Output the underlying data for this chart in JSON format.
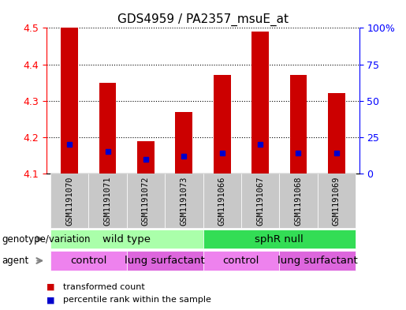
{
  "title": "GDS4959 / PA2357_msuE_at",
  "samples": [
    "GSM1191070",
    "GSM1191071",
    "GSM1191072",
    "GSM1191073",
    "GSM1191066",
    "GSM1191067",
    "GSM1191068",
    "GSM1191069"
  ],
  "transformed_counts": [
    4.5,
    4.35,
    4.19,
    4.27,
    4.37,
    4.49,
    4.37,
    4.32
  ],
  "percentile_ranks": [
    20,
    15,
    10,
    12,
    14,
    20,
    14,
    14
  ],
  "bar_bottom": 4.1,
  "ylim": [
    4.1,
    4.5
  ],
  "yticks": [
    4.1,
    4.2,
    4.3,
    4.4,
    4.5
  ],
  "right_yticks": [
    0,
    25,
    50,
    75,
    100
  ],
  "right_ylim": [
    0,
    100
  ],
  "bar_color": "#cc0000",
  "percentile_color": "#0000cc",
  "genotype_groups": [
    {
      "label": "wild type",
      "start": 0,
      "end": 4,
      "color": "#aaffaa"
    },
    {
      "label": "sphR null",
      "start": 4,
      "end": 8,
      "color": "#33dd55"
    }
  ],
  "agent_groups": [
    {
      "label": "control",
      "start": 0,
      "end": 2,
      "color": "#ee82ee"
    },
    {
      "label": "lung surfactant",
      "start": 2,
      "end": 4,
      "color": "#dd66dd"
    },
    {
      "label": "control",
      "start": 4,
      "end": 6,
      "color": "#ee82ee"
    },
    {
      "label": "lung surfactant",
      "start": 6,
      "end": 8,
      "color": "#dd66dd"
    }
  ],
  "genotype_label": "genotype/variation",
  "agent_label": "agent",
  "legend_items": [
    {
      "label": "transformed count",
      "color": "#cc0000"
    },
    {
      "label": "percentile rank within the sample",
      "color": "#0000cc"
    }
  ],
  "sample_bg": "#c8c8c8",
  "bar_width": 0.45
}
